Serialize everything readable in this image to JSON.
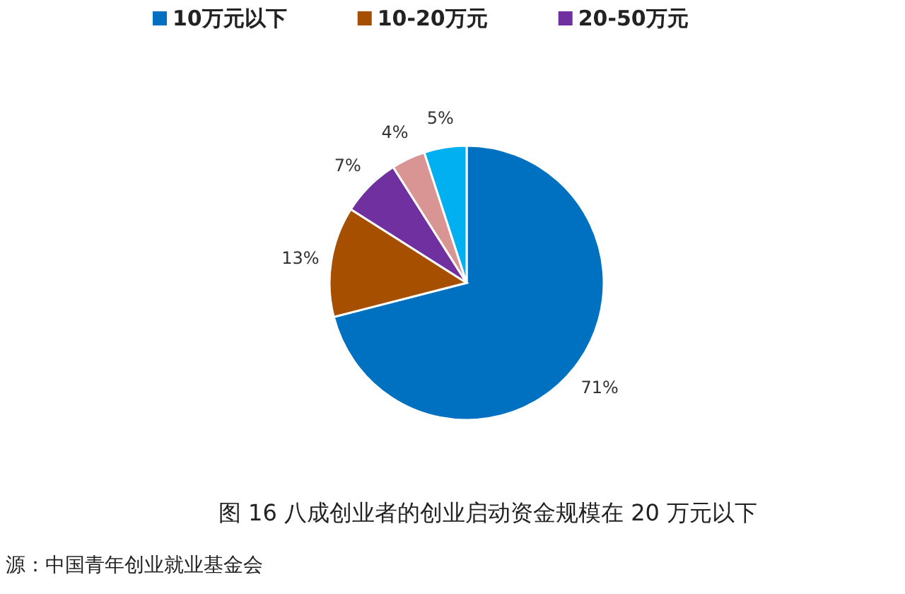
{
  "chart_data": {
    "type": "pie",
    "title": "图 16  八成创业者的创业启动资金规模在 20 万元以下",
    "categories": [
      "10万元以下",
      "10-20万元",
      "20-50万元",
      null,
      null
    ],
    "values": [
      71,
      13,
      7,
      4,
      5
    ],
    "colors": [
      "#0070c0",
      "#a64f00",
      "#7030a0",
      "#d99594",
      "#00b0f0"
    ],
    "value_labels": [
      "71%",
      "13%",
      "7%",
      "4%",
      "5%"
    ],
    "legend": "top",
    "annotations": [
      "源：中国青年创业就业基金会"
    ]
  }
}
